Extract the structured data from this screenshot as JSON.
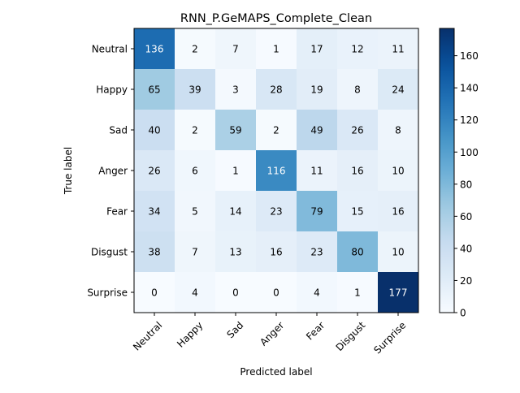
{
  "chart_data": {
    "type": "heatmap",
    "title": "RNN_P.GeMAPS_Complete_Clean",
    "xlabel": "Predicted label",
    "ylabel": "True label",
    "x_categories": [
      "Neutral",
      "Happy",
      "Sad",
      "Anger",
      "Fear",
      "Disgust",
      "Surprise"
    ],
    "y_categories": [
      "Neutral",
      "Happy",
      "Sad",
      "Anger",
      "Fear",
      "Disgust",
      "Surprise"
    ],
    "values": [
      [
        136,
        2,
        7,
        1,
        17,
        12,
        11
      ],
      [
        65,
        39,
        3,
        28,
        19,
        8,
        24
      ],
      [
        40,
        2,
        59,
        2,
        49,
        26,
        8
      ],
      [
        26,
        6,
        1,
        116,
        11,
        16,
        10
      ],
      [
        34,
        5,
        14,
        23,
        79,
        15,
        16
      ],
      [
        38,
        7,
        13,
        16,
        23,
        80,
        10
      ],
      [
        0,
        4,
        0,
        0,
        4,
        1,
        177
      ]
    ],
    "colormap": "Blues",
    "colorbar": {
      "range": [
        0,
        177
      ],
      "ticks": [
        0,
        20,
        40,
        60,
        80,
        100,
        120,
        140,
        160
      ]
    }
  }
}
